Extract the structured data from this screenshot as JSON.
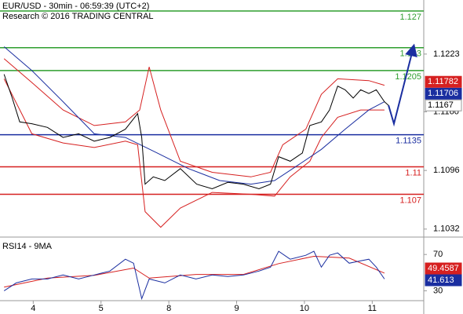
{
  "chart_data": [
    {
      "type": "line",
      "title": "EUR/USD - 30min - 06:59:39 (UTC+2)",
      "subtitle": "Research © 2016 TRADING CENTRAL",
      "xlim": [
        0.51,
        6.76
      ],
      "ylim": [
        1.1025,
        1.1282
      ],
      "yticks": [
        1.1223,
        {
          "value": 1.116,
          "label": "1.1160"
        },
        1.1096,
        1.1032
      ],
      "levels": [
        {
          "value": 1.127,
          "color": "#2e9e2e"
        },
        {
          "value": 1.123,
          "color": "#2e9e2e"
        },
        {
          "value": 1.1205,
          "color": "#2e9e2e"
        },
        {
          "value": 1.1135,
          "color": "#1a2ea0"
        },
        {
          "value": 1.11,
          "color": "#d62020"
        },
        {
          "value": 1.107,
          "color": "#d62020"
        }
      ],
      "price_labels": [
        {
          "value": 1.11782,
          "color": "#d62020",
          "text_color": "#ffffff"
        },
        {
          "value": 1.11706,
          "color": "#1a2ea0",
          "text_color": "#ffffff"
        },
        {
          "value": 1.1167,
          "color": "#ffffff",
          "text_color": "#000000"
        }
      ],
      "series": [
        {
          "color": "#d62020",
          "x": [
            0.57,
            0.98,
            1.44,
            1.9,
            2.36,
            2.57,
            2.71,
            2.88,
            3.17,
            3.64,
            4.21,
            4.5,
            4.68,
            5.02,
            5.25,
            5.49,
            5.95,
            6.18
          ],
          "values": [
            1.1218,
            1.1192,
            1.1162,
            1.1145,
            1.1149,
            1.1162,
            1.1209,
            1.1162,
            1.1106,
            1.1094,
            1.1089,
            1.1094,
            1.1124,
            1.1141,
            1.1179,
            1.1196,
            1.1194,
            1.1189
          ]
        },
        {
          "color": "#d62020",
          "x": [
            0.57,
            0.98,
            1.44,
            1.9,
            2.36,
            2.54,
            2.65,
            2.88,
            3.17,
            3.64,
            4.21,
            4.56,
            4.79,
            5.08,
            5.25,
            5.49,
            5.83,
            6.18
          ],
          "values": [
            1.1196,
            1.1136,
            1.1126,
            1.1121,
            1.1128,
            1.1124,
            1.1051,
            1.1034,
            1.1055,
            1.1072,
            1.107,
            1.1068,
            1.1089,
            1.1106,
            1.1132,
            1.1154,
            1.1162,
            1.1162
          ]
        },
        {
          "color": "#1a2ea0",
          "x": [
            0.57,
            0.98,
            1.44,
            1.9,
            2.36,
            2.83,
            3.29,
            3.75,
            4.21,
            4.56,
            4.91,
            5.25,
            5.6,
            5.95,
            6.18
          ],
          "values": [
            1.1231,
            1.1205,
            1.1171,
            1.1136,
            1.1132,
            1.1115,
            1.1098,
            1.1085,
            1.1081,
            1.1085,
            1.1102,
            1.1119,
            1.1141,
            1.1162,
            1.1171
          ]
        },
        {
          "color": "#000000",
          "x": [
            0.57,
            0.69,
            0.8,
            0.98,
            1.21,
            1.44,
            1.67,
            1.9,
            2.13,
            2.36,
            2.54,
            2.6,
            2.65,
            2.77,
            2.94,
            3.17,
            3.41,
            3.64,
            3.87,
            4.1,
            4.33,
            4.5,
            4.62,
            4.79,
            4.97,
            5.08,
            5.25,
            5.37,
            5.49,
            5.6,
            5.72,
            5.83,
            5.95,
            6.06,
            6.18,
            6.24
          ],
          "values": [
            1.1201,
            1.1175,
            1.1149,
            1.1147,
            1.1143,
            1.1132,
            1.1136,
            1.1128,
            1.1132,
            1.1141,
            1.1158,
            1.1132,
            1.1081,
            1.1089,
            1.1085,
            1.1098,
            1.1081,
            1.1076,
            1.1083,
            1.1081,
            1.1076,
            1.1081,
            1.1111,
            1.1106,
            1.1115,
            1.1145,
            1.1149,
            1.1162,
            1.1188,
            1.1184,
            1.1175,
            1.1184,
            1.118,
            1.1184,
            1.1171,
            1.1167
          ]
        },
        {
          "color": "#1a2ea0",
          "arrow": true,
          "x": [
            6.24,
            6.32,
            6.61
          ],
          "values": [
            1.1167,
            1.1147,
            1.1231
          ]
        }
      ]
    },
    {
      "type": "line",
      "title": "RSI14 - 9MA",
      "xlim": [
        0.51,
        6.76
      ],
      "ylim": [
        20,
        84
      ],
      "yticks": [
        70,
        30
      ],
      "xticks": [
        {
          "value": 1,
          "label": "4"
        },
        {
          "value": 2,
          "label": "5"
        },
        {
          "value": 3,
          "label": "8"
        },
        {
          "value": 4,
          "label": "9"
        },
        {
          "value": 5,
          "label": "10"
        },
        {
          "value": 6,
          "label": "11"
        }
      ],
      "price_labels": [
        {
          "value": 49.4587,
          "color": "#d62020",
          "text_color": "#ffffff"
        },
        {
          "value": 41.613,
          "color": "#1a2ea0",
          "text_color": "#ffffff"
        }
      ],
      "series": [
        {
          "color": "#d62020",
          "x": [
            0.57,
            1.21,
            1.9,
            2.48,
            2.71,
            3.4,
            4.1,
            4.62,
            5.14,
            5.66,
            6.18
          ],
          "values": [
            34,
            44,
            47,
            55,
            44,
            48,
            48,
            60,
            68,
            66,
            49.5
          ]
        },
        {
          "color": "#1a2ea0",
          "x": [
            0.57,
            0.75,
            0.98,
            1.21,
            1.44,
            1.67,
            1.9,
            2.13,
            2.36,
            2.48,
            2.6,
            2.71,
            2.94,
            3.17,
            3.4,
            3.64,
            3.87,
            4.1,
            4.33,
            4.5,
            4.62,
            4.79,
            5.02,
            5.14,
            5.25,
            5.37,
            5.49,
            5.66,
            5.83,
            5.95,
            6.06,
            6.18
          ],
          "values": [
            30,
            38.7,
            43,
            43,
            47.4,
            43,
            47.4,
            51.7,
            64.8,
            60.4,
            21.3,
            43,
            38.7,
            47.4,
            43,
            47.4,
            45.7,
            47.4,
            51.7,
            56.1,
            73.5,
            64.8,
            69.1,
            73.5,
            56.1,
            69.1,
            71.7,
            60.4,
            63,
            64.8,
            56.1,
            43
          ]
        }
      ]
    }
  ]
}
